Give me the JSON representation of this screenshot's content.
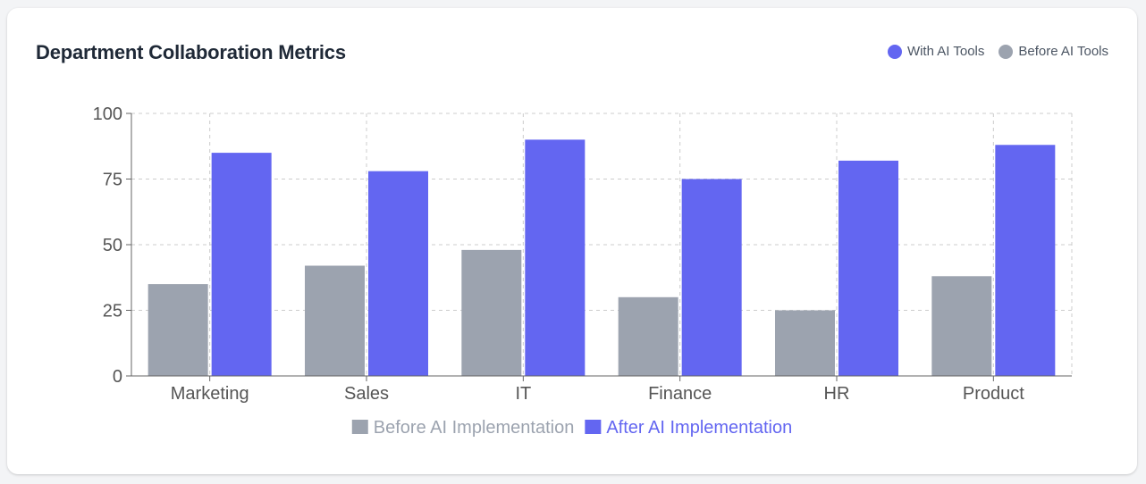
{
  "card": {
    "title": "Department Collaboration Metrics",
    "legend": [
      {
        "label": "With AI Tools",
        "color": "#6366f1"
      },
      {
        "label": "Before AI Tools",
        "color": "#9ca3af"
      }
    ]
  },
  "chart_data": {
    "type": "bar",
    "categories": [
      "Marketing",
      "Sales",
      "IT",
      "Finance",
      "HR",
      "Product"
    ],
    "series": [
      {
        "name": "Before AI Implementation",
        "values": [
          35,
          42,
          48,
          30,
          25,
          38
        ],
        "color": "#9ca3af"
      },
      {
        "name": "After AI Implementation",
        "values": [
          85,
          78,
          90,
          75,
          82,
          88
        ],
        "color": "#6366f1"
      }
    ],
    "title": "Department Collaboration Metrics",
    "xlabel": "",
    "ylabel": "",
    "ylim": [
      0,
      100
    ],
    "yticks": [
      0,
      25,
      50,
      75,
      100
    ],
    "grid": true,
    "legend_position": "bottom"
  }
}
